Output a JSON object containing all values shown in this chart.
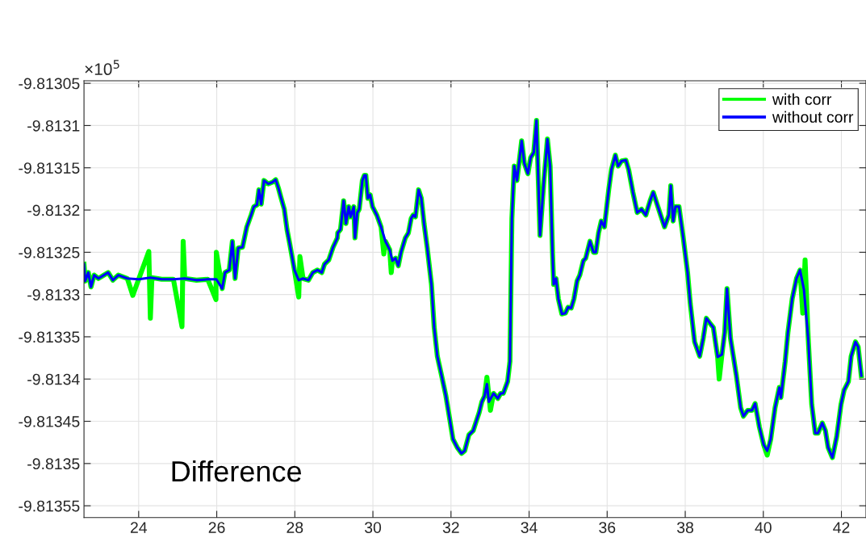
{
  "chart_data": {
    "type": "line",
    "annotations": [
      "×10$^{5}$",
      "Difference"
    ],
    "xlim": [
      22.6,
      42.63
    ],
    "ylim": [
      -9.813564,
      -9.813047
    ],
    "xticks": [
      24,
      26,
      28,
      30,
      32,
      34,
      36,
      38,
      40,
      42
    ],
    "yticks": [
      -9.81305,
      -9.8131,
      -9.81315,
      -9.8132,
      -9.81325,
      -9.8133,
      -9.81335,
      -9.8134,
      -9.81345,
      -9.8135,
      -9.81355
    ],
    "grid": true,
    "legend": "top right",
    "line_style": "solid",
    "marker": "none",
    "series": [
      {
        "name": "with corr",
        "color": "#00ff00",
        "x": [
          22.6,
          22.63,
          22.71,
          22.78,
          22.86,
          22.97,
          23.11,
          23.22,
          23.34,
          23.48,
          23.71,
          23.85,
          24.0,
          24.26,
          24.3,
          24.34,
          24.59,
          24.89,
          25.11,
          25.14,
          25.18,
          25.48,
          25.77,
          25.98,
          25.99,
          26.14,
          26.21,
          26.32,
          26.4,
          26.47,
          26.55,
          26.66,
          26.77,
          26.88,
          26.95,
          27.03,
          27.08,
          27.14,
          27.21,
          27.32,
          27.43,
          27.51,
          27.58,
          27.65,
          27.73,
          27.8,
          27.87,
          27.99,
          28.1,
          28.13,
          28.21,
          28.35,
          28.46,
          28.58,
          28.69,
          28.76,
          28.87,
          28.98,
          29.09,
          29.1,
          29.17,
          29.25,
          29.31,
          29.38,
          29.43,
          29.51,
          29.54,
          29.6,
          29.65,
          29.73,
          29.78,
          29.82,
          29.87,
          29.93,
          29.99,
          30.1,
          30.21,
          30.28,
          30.32,
          30.43,
          30.47,
          30.5,
          30.58,
          30.65,
          30.72,
          30.83,
          30.91,
          30.98,
          31.03,
          31.09,
          31.17,
          31.24,
          31.31,
          31.39,
          31.5,
          31.57,
          31.65,
          31.76,
          31.87,
          31.98,
          32.05,
          32.16,
          32.27,
          32.35,
          32.46,
          32.57,
          32.64,
          32.72,
          32.79,
          32.86,
          32.92,
          33.01,
          33.09,
          33.2,
          33.27,
          33.34,
          33.45,
          33.51,
          33.56,
          33.62,
          33.69,
          33.81,
          33.88,
          33.97,
          34.04,
          34.12,
          34.19,
          34.28,
          34.38,
          34.47,
          34.54,
          34.6,
          34.63,
          34.69,
          34.75,
          34.84,
          34.93,
          35.0,
          35.08,
          35.15,
          35.23,
          35.3,
          35.39,
          35.45,
          35.56,
          35.65,
          35.71,
          35.78,
          35.85,
          35.93,
          36.04,
          36.11,
          36.21,
          36.28,
          36.37,
          36.48,
          36.55,
          36.66,
          36.77,
          36.88,
          36.99,
          37.1,
          37.18,
          37.25,
          37.32,
          37.47,
          37.58,
          37.63,
          37.69,
          37.75,
          37.84,
          37.95,
          38.06,
          38.13,
          38.24,
          38.37,
          38.46,
          38.54,
          38.65,
          38.72,
          38.83,
          38.87,
          38.94,
          39.01,
          39.07,
          39.16,
          39.31,
          39.42,
          39.49,
          39.6,
          39.71,
          39.79,
          39.9,
          40.01,
          40.1,
          40.19,
          40.3,
          40.41,
          40.45,
          40.56,
          40.63,
          40.74,
          40.85,
          40.94,
          41.01,
          41.07,
          41.15,
          41.24,
          41.33,
          41.4,
          41.51,
          41.59,
          41.66,
          41.77,
          41.88,
          41.99,
          42.07,
          42.18,
          42.25,
          42.36,
          42.43,
          42.51
        ],
        "values": [
          -9.813264,
          -9.813284,
          -9.813274,
          -9.813291,
          -9.813277,
          -9.813281,
          -9.813277,
          -9.813274,
          -9.813283,
          -9.813277,
          -9.813281,
          -9.813301,
          -9.813282,
          -9.813249,
          -9.813328,
          -9.81328,
          -9.813282,
          -9.813282,
          -9.813338,
          -9.813237,
          -9.813281,
          -9.813283,
          -9.813282,
          -9.813306,
          -9.81325,
          -9.813293,
          -9.813274,
          -9.813271,
          -9.813237,
          -9.813281,
          -9.813245,
          -9.813244,
          -9.81322,
          -9.813206,
          -9.813196,
          -9.813194,
          -9.813176,
          -9.813193,
          -9.813165,
          -9.813169,
          -9.813167,
          -9.813164,
          -9.813174,
          -9.813186,
          -9.813199,
          -9.813223,
          -9.81324,
          -9.813271,
          -9.813303,
          -9.813255,
          -9.813281,
          -9.813283,
          -9.813274,
          -9.813271,
          -9.813274,
          -9.813264,
          -9.813259,
          -9.813244,
          -9.813233,
          -9.813227,
          -9.813223,
          -9.813189,
          -9.813216,
          -9.813196,
          -9.813208,
          -9.813196,
          -9.813233,
          -9.813203,
          -9.813199,
          -9.813165,
          -9.813159,
          -9.813159,
          -9.813186,
          -9.813182,
          -9.813196,
          -9.813206,
          -9.81322,
          -9.813252,
          -9.813237,
          -9.813247,
          -9.813274,
          -9.81326,
          -9.813257,
          -9.813266,
          -9.81325,
          -9.813233,
          -9.813227,
          -9.81321,
          -9.813206,
          -9.813208,
          -9.813176,
          -9.813186,
          -9.813216,
          -9.813244,
          -9.813288,
          -9.813339,
          -9.813373,
          -9.813396,
          -9.81342,
          -9.813451,
          -9.813471,
          -9.813481,
          -9.813488,
          -9.813485,
          -9.813466,
          -9.813461,
          -9.813451,
          -9.81344,
          -9.813427,
          -9.81342,
          -9.813398,
          -9.813437,
          -9.813417,
          -9.813423,
          -9.813417,
          -9.813417,
          -9.813403,
          -9.813379,
          -9.81321,
          -9.813148,
          -9.813165,
          -9.813118,
          -9.813145,
          -9.813157,
          -9.813138,
          -9.813132,
          -9.813094,
          -9.81323,
          -9.813165,
          -9.813116,
          -9.813148,
          -9.81325,
          -9.813288,
          -9.813281,
          -9.813305,
          -9.813323,
          -9.813322,
          -9.813315,
          -9.813316,
          -9.813305,
          -9.813284,
          -9.813277,
          -9.81326,
          -9.813257,
          -9.813237,
          -9.81325,
          -9.81325,
          -9.813227,
          -9.813213,
          -9.81322,
          -9.813176,
          -9.813152,
          -9.813135,
          -9.813148,
          -9.813142,
          -9.813141,
          -9.813152,
          -9.813179,
          -9.813203,
          -9.813199,
          -9.813206,
          -9.813189,
          -9.813179,
          -9.813189,
          -9.813199,
          -9.81322,
          -9.813206,
          -9.813171,
          -9.813213,
          -9.813196,
          -9.813196,
          -9.813233,
          -9.813274,
          -9.813311,
          -9.813356,
          -9.813373,
          -9.813352,
          -9.813328,
          -9.813335,
          -9.813339,
          -9.813374,
          -9.8134,
          -9.813371,
          -9.813345,
          -9.813293,
          -9.813352,
          -9.813396,
          -9.813434,
          -9.813444,
          -9.813437,
          -9.813437,
          -9.813429,
          -9.813457,
          -9.813478,
          -9.81349,
          -9.813471,
          -9.813434,
          -9.81341,
          -9.813422,
          -9.813379,
          -9.813345,
          -9.813305,
          -9.813281,
          -9.813271,
          -9.813322,
          -9.813259,
          -9.813352,
          -9.81343,
          -9.813464,
          -9.813464,
          -9.813452,
          -9.813461,
          -9.813481,
          -9.813493,
          -9.813468,
          -9.81343,
          -9.813413,
          -9.813403,
          -9.813373,
          -9.813356,
          -9.813362,
          -9.813396
        ]
      },
      {
        "name": "without corr",
        "color": "#0000ff",
        "x": [
          22.6,
          22.63,
          22.71,
          22.78,
          22.86,
          22.97,
          23.11,
          23.22,
          23.34,
          23.48,
          23.71,
          24.0,
          24.3,
          24.59,
          24.89,
          25.18,
          25.48,
          25.77,
          25.99,
          26.14,
          26.21,
          26.32,
          26.4,
          26.47,
          26.55,
          26.66,
          26.77,
          26.88,
          26.95,
          27.03,
          27.08,
          27.14,
          27.21,
          27.32,
          27.43,
          27.51,
          27.58,
          27.65,
          27.73,
          27.8,
          27.87,
          27.99,
          28.1,
          28.21,
          28.35,
          28.46,
          28.58,
          28.69,
          28.76,
          28.87,
          28.98,
          29.09,
          29.1,
          29.17,
          29.25,
          29.31,
          29.38,
          29.43,
          29.51,
          29.54,
          29.6,
          29.65,
          29.73,
          29.78,
          29.82,
          29.87,
          29.93,
          29.99,
          30.1,
          30.21,
          30.32,
          30.43,
          30.5,
          30.58,
          30.65,
          30.72,
          30.83,
          30.91,
          30.98,
          31.03,
          31.09,
          31.17,
          31.24,
          31.31,
          31.39,
          31.5,
          31.57,
          31.65,
          31.76,
          31.87,
          31.98,
          32.05,
          32.16,
          32.27,
          32.35,
          32.46,
          32.57,
          32.64,
          32.72,
          32.79,
          32.86,
          32.92,
          32.97,
          33.09,
          33.2,
          33.27,
          33.34,
          33.45,
          33.51,
          33.56,
          33.62,
          33.69,
          33.81,
          33.88,
          33.97,
          34.04,
          34.12,
          34.19,
          34.28,
          34.38,
          34.47,
          34.54,
          34.6,
          34.63,
          34.69,
          34.75,
          34.84,
          34.93,
          35.0,
          35.08,
          35.15,
          35.23,
          35.3,
          35.39,
          35.45,
          35.56,
          35.65,
          35.71,
          35.78,
          35.85,
          35.93,
          36.04,
          36.11,
          36.21,
          36.28,
          36.37,
          36.48,
          36.55,
          36.66,
          36.77,
          36.88,
          36.99,
          37.1,
          37.18,
          37.25,
          37.32,
          37.47,
          37.58,
          37.63,
          37.69,
          37.75,
          37.84,
          37.95,
          38.06,
          38.13,
          38.24,
          38.37,
          38.46,
          38.54,
          38.65,
          38.72,
          38.83,
          38.94,
          39.01,
          39.07,
          39.16,
          39.31,
          39.42,
          39.49,
          39.6,
          39.71,
          39.79,
          39.9,
          40.01,
          40.1,
          40.19,
          40.3,
          40.41,
          40.45,
          40.56,
          40.63,
          40.74,
          40.85,
          40.94,
          41.04,
          41.15,
          41.24,
          41.33,
          41.4,
          41.51,
          41.59,
          41.66,
          41.77,
          41.88,
          41.99,
          42.07,
          42.18,
          42.25,
          42.36,
          42.43,
          42.51
        ],
        "values": [
          -9.813264,
          -9.813284,
          -9.813274,
          -9.813291,
          -9.813277,
          -9.813281,
          -9.813277,
          -9.813274,
          -9.813283,
          -9.813277,
          -9.813281,
          -9.813282,
          -9.81328,
          -9.813282,
          -9.813282,
          -9.813281,
          -9.813283,
          -9.813282,
          -9.813282,
          -9.813293,
          -9.813274,
          -9.813271,
          -9.813237,
          -9.813281,
          -9.813245,
          -9.813244,
          -9.81322,
          -9.813206,
          -9.813196,
          -9.813194,
          -9.813176,
          -9.813193,
          -9.813165,
          -9.813169,
          -9.813167,
          -9.813164,
          -9.813174,
          -9.813186,
          -9.813199,
          -9.813223,
          -9.81324,
          -9.813271,
          -9.813283,
          -9.813281,
          -9.813283,
          -9.813274,
          -9.813271,
          -9.813274,
          -9.813264,
          -9.813259,
          -9.813244,
          -9.813233,
          -9.813227,
          -9.813223,
          -9.813189,
          -9.813216,
          -9.813196,
          -9.813208,
          -9.813196,
          -9.813233,
          -9.813203,
          -9.813199,
          -9.813165,
          -9.813159,
          -9.813159,
          -9.813186,
          -9.813182,
          -9.813196,
          -9.813206,
          -9.81322,
          -9.813237,
          -9.813247,
          -9.81326,
          -9.813257,
          -9.813266,
          -9.81325,
          -9.813233,
          -9.813227,
          -9.81321,
          -9.813206,
          -9.813208,
          -9.813176,
          -9.813186,
          -9.813216,
          -9.813244,
          -9.813288,
          -9.813339,
          -9.813373,
          -9.813396,
          -9.81342,
          -9.813451,
          -9.813471,
          -9.813481,
          -9.813488,
          -9.813485,
          -9.813466,
          -9.813461,
          -9.813451,
          -9.81344,
          -9.813427,
          -9.81342,
          -9.813406,
          -9.813427,
          -9.813417,
          -9.813423,
          -9.813417,
          -9.813417,
          -9.813403,
          -9.813379,
          -9.81321,
          -9.813148,
          -9.813165,
          -9.813118,
          -9.813145,
          -9.813157,
          -9.813138,
          -9.813132,
          -9.813094,
          -9.81323,
          -9.813165,
          -9.813116,
          -9.813148,
          -9.81325,
          -9.813288,
          -9.813281,
          -9.813305,
          -9.813323,
          -9.813322,
          -9.813315,
          -9.813316,
          -9.813305,
          -9.813284,
          -9.813277,
          -9.81326,
          -9.813257,
          -9.813237,
          -9.81325,
          -9.81325,
          -9.813227,
          -9.813213,
          -9.81322,
          -9.813176,
          -9.813152,
          -9.813135,
          -9.813148,
          -9.813142,
          -9.813141,
          -9.813152,
          -9.813179,
          -9.813203,
          -9.813199,
          -9.813206,
          -9.813189,
          -9.813179,
          -9.813189,
          -9.813199,
          -9.81322,
          -9.813206,
          -9.813171,
          -9.813213,
          -9.813196,
          -9.813196,
          -9.813233,
          -9.813274,
          -9.813311,
          -9.813356,
          -9.813373,
          -9.813352,
          -9.813328,
          -9.813335,
          -9.813339,
          -9.813374,
          -9.813371,
          -9.813345,
          -9.813293,
          -9.813352,
          -9.813396,
          -9.813434,
          -9.813444,
          -9.813437,
          -9.813437,
          -9.813429,
          -9.813457,
          -9.813478,
          -9.813485,
          -9.813471,
          -9.813434,
          -9.81341,
          -9.813422,
          -9.813379,
          -9.813345,
          -9.813305,
          -9.813281,
          -9.813271,
          -9.813294,
          -9.813352,
          -9.81343,
          -9.813464,
          -9.813464,
          -9.813452,
          -9.813461,
          -9.813481,
          -9.813493,
          -9.813468,
          -9.81343,
          -9.813413,
          -9.813403,
          -9.813373,
          -9.813356,
          -9.813362,
          -9.813396
        ]
      }
    ]
  }
}
